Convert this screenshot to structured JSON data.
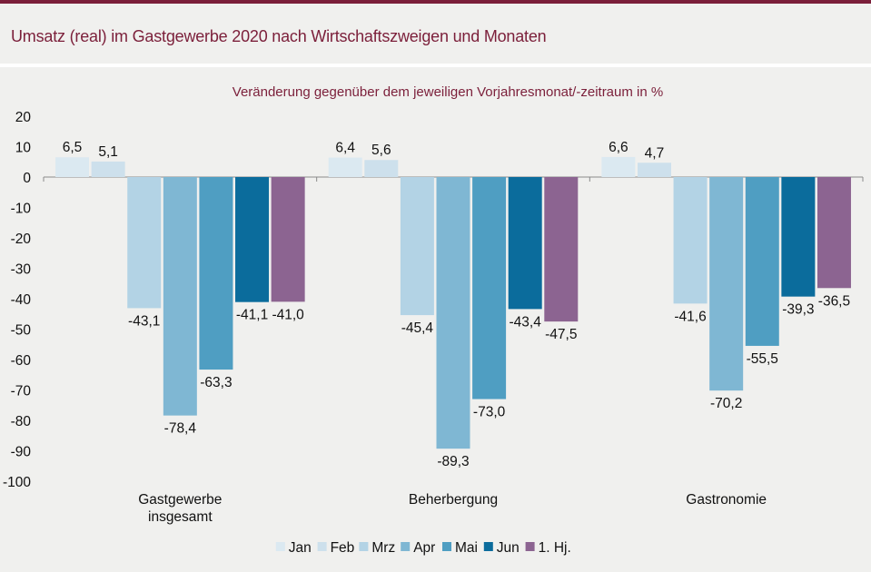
{
  "header": {
    "title": "Umsatz (real) im Gastgewerbe 2020 nach Wirtschaftszweigen und Monaten"
  },
  "chart_data": {
    "type": "bar",
    "subtitle": "Veränderung gegenüber dem jeweiligen Vorjahresmonat/-zeitraum in %",
    "categories": [
      [
        "Gastgewerbe",
        "insgesamt"
      ],
      [
        "Beherbergung"
      ],
      [
        "Gastronomie"
      ]
    ],
    "series": [
      {
        "name": "Jan",
        "color": "#dbe9f1",
        "values": [
          6.5,
          6.4,
          6.6
        ],
        "labels": [
          "6,5",
          "6,4",
          "6,6"
        ]
      },
      {
        "name": "Feb",
        "color": "#cde0ec",
        "values": [
          5.1,
          5.6,
          4.7
        ],
        "labels": [
          "5,1",
          "5,6",
          "4,7"
        ]
      },
      {
        "name": "Mrz",
        "color": "#b3d3e5",
        "values": [
          -43.1,
          -45.4,
          -41.6
        ],
        "labels": [
          "-43,1",
          "-45,4",
          "-41,6"
        ]
      },
      {
        "name": "Apr",
        "color": "#7fb7d3",
        "values": [
          -78.4,
          -89.3,
          -70.2
        ],
        "labels": [
          "-78,4",
          "-89,3",
          "-70,2"
        ]
      },
      {
        "name": "Mai",
        "color": "#4f9ec2",
        "values": [
          -63.3,
          -73.0,
          -55.5
        ],
        "labels": [
          "-63,3",
          "-73,0",
          "-55,5"
        ]
      },
      {
        "name": "Jun",
        "color": "#0b6c9c",
        "values": [
          -41.1,
          -43.4,
          -39.3
        ],
        "labels": [
          "-41,1",
          "-43,4",
          "-39,3"
        ]
      },
      {
        "name": "1. Hj.",
        "color": "#8c6491",
        "values": [
          -41.0,
          -47.5,
          -36.5
        ],
        "labels": [
          "-41,0",
          "-47,5",
          "-36,5"
        ]
      }
    ],
    "ylim": [
      -100,
      20
    ],
    "yticks": [
      "20",
      "10",
      "0",
      "-10",
      "-20",
      "-30",
      "-40",
      "-50",
      "-60",
      "-70",
      "-80",
      "-90",
      "-100"
    ],
    "grid": false,
    "legend_position": "bottom"
  }
}
